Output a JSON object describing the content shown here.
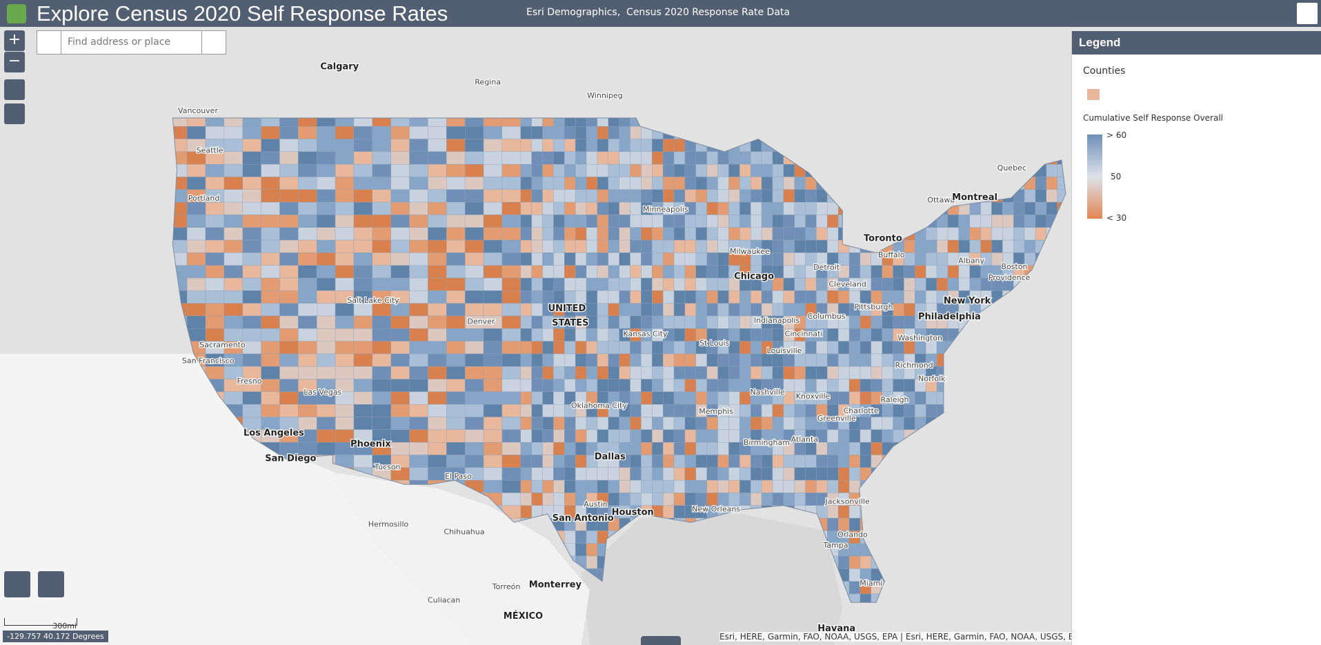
{
  "header": {
    "title": "Explore Census 2020 Self Response Rates",
    "subtitle": "Esri Demographics,  Census 2020 Response Rate Data"
  },
  "search": {
    "placeholder": "Find address or place"
  },
  "controls": {
    "zoom_in": "+",
    "zoom_out": "−"
  },
  "map": {
    "places": [
      "Calgary",
      "Regina",
      "Winnipeg",
      "Vancouver",
      "Seattle",
      "Portland",
      "Minneapolis",
      "Quebec",
      "Ottawa",
      "Montreal",
      "Toronto",
      "Buffalo",
      "Milwaukee",
      "Detroit",
      "Chicago",
      "Albany",
      "Boston",
      "Providence",
      "Cleveland",
      "New York",
      "Pittsburgh",
      "Philadelphia",
      "Salt Lake City",
      "UNITED",
      "STATES",
      "Denver",
      "Columbus",
      "Indianapolis",
      "Cincinnati",
      "Kansas City",
      "St Louis",
      "Washington",
      "Sacramento",
      "Louisville",
      "San Francisco",
      "Richmond",
      "Norfolk",
      "Las Vegas",
      "Nashville",
      "Knoxville",
      "Fresno",
      "Raleigh",
      "Oklahoma City",
      "Charlotte",
      "Memphis",
      "Greenville",
      "Los Angeles",
      "Atlanta",
      "Birmingham",
      "Phoenix",
      "Dallas",
      "San Diego",
      "Tucson",
      "El Paso",
      "Jacksonville",
      "Austin",
      "New Orleans",
      "Houston",
      "San Antonio",
      "Hermosillo",
      "Chihuahua",
      "Orlando",
      "Tampa",
      "Miami",
      "Monterrey",
      "Torreón",
      "Culiacan",
      "MÉXICO",
      "Havana"
    ],
    "scale_label": "300mi",
    "coordinates": "-129.757 40.172 Degrees",
    "attribution": "Esri, HERE, Garmin, FAO, NOAA, USGS, EPA | Esri, HERE, Garmin, FAO, NOAA, USGS, E"
  },
  "legend": {
    "title": "Legend",
    "layer": "Counties",
    "field": "Cumulative Self Response Overall",
    "labels": [
      "> 60",
      "50",
      "< 30"
    ]
  }
}
